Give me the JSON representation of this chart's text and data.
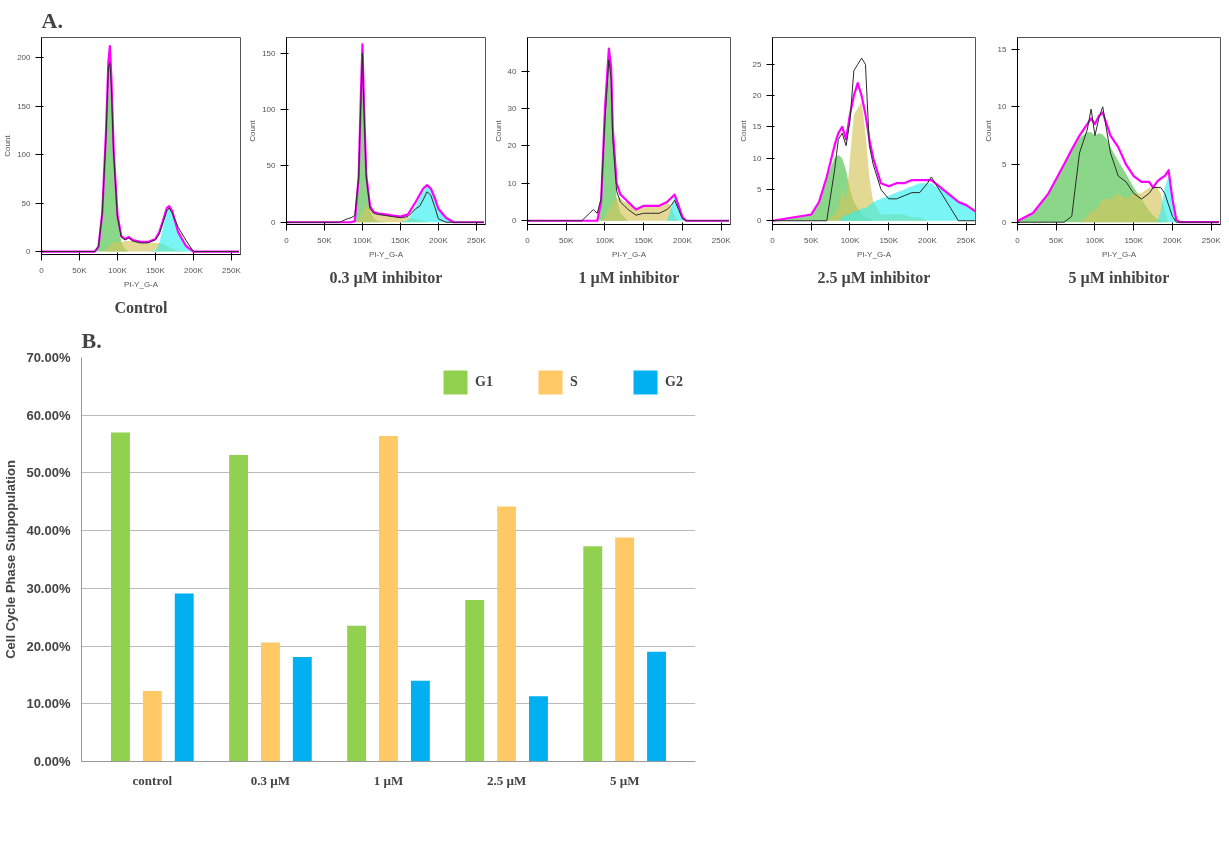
{
  "chart_data": [
    {
      "type": "area",
      "title": "Control",
      "annotations": [
        "A."
      ],
      "xlabel": "PI-Y_G-A",
      "ylabel": "Count",
      "xlim": [
        0,
        262000
      ],
      "ylim": [
        -3,
        221
      ],
      "xticks": [
        0,
        {
          "value": 50000,
          "label": "50K"
        },
        {
          "value": 100000,
          "label": "100K"
        },
        {
          "value": 150000,
          "label": "150K"
        },
        {
          "value": 200000,
          "label": "200K"
        },
        {
          "value": 250000,
          "label": "250K"
        }
      ],
      "yticks": [
        0,
        50,
        100,
        150,
        200
      ],
      "x": [
        0,
        70000,
        75000,
        80000,
        85000,
        88000,
        90000,
        92000,
        95000,
        100000,
        105000,
        110000,
        115000,
        120000,
        130000,
        140000,
        150000,
        155000,
        160000,
        165000,
        168000,
        172000,
        180000,
        190000,
        200000,
        260000
      ],
      "series": [
        {
          "type": "area",
          "color": "#4cc24c",
          "values": [
            0,
            0,
            5,
            40,
            120,
            190,
            205,
            175,
            100,
            32,
            10,
            3,
            0,
            0,
            0,
            0,
            0,
            0,
            0,
            0,
            0,
            0,
            0,
            0,
            0,
            0
          ]
        },
        {
          "type": "area",
          "color": "#d4c45a",
          "values": [
            0,
            0,
            0,
            0,
            2,
            5,
            6,
            8,
            10,
            10,
            10,
            11,
            11,
            11,
            10,
            9,
            9,
            9,
            8,
            6,
            5,
            3,
            1,
            0,
            0,
            0
          ]
        },
        {
          "type": "area",
          "color": "#33f0f0",
          "values": [
            0,
            0,
            0,
            0,
            0,
            0,
            0,
            0,
            0,
            0,
            0,
            0,
            0,
            0,
            0,
            0,
            1,
            8,
            25,
            42,
            45,
            40,
            20,
            5,
            0,
            0
          ]
        },
        {
          "type": "line",
          "color": "#2b2b2b",
          "values": [
            0,
            0,
            5,
            40,
            120,
            190,
            195,
            170,
            100,
            35,
            15,
            12,
            14,
            11,
            9,
            9,
            12,
            18,
            30,
            42,
            45,
            40,
            25,
            12,
            0,
            0
          ]
        },
        {
          "type": "line",
          "color": "#ff00ff",
          "values": [
            0,
            0,
            5,
            40,
            125,
            195,
            212,
            180,
            105,
            38,
            16,
            13,
            15,
            12,
            10,
            10,
            13,
            20,
            32,
            45,
            47,
            42,
            20,
            6,
            0,
            0
          ]
        }
      ]
    },
    {
      "type": "area",
      "title": "0.3 µM inhibitor",
      "xlabel": "PI-Y_G-A",
      "ylabel": "Count",
      "xlim": [
        0,
        262000
      ],
      "ylim": [
        -2,
        164
      ],
      "xticks": [
        0,
        {
          "value": 50000,
          "label": "50K"
        },
        {
          "value": 100000,
          "label": "100K"
        },
        {
          "value": 150000,
          "label": "150K"
        },
        {
          "value": 200000,
          "label": "200K"
        },
        {
          "value": 250000,
          "label": "250K"
        }
      ],
      "yticks": [
        0,
        50,
        100,
        150
      ],
      "x": [
        0,
        70000,
        80000,
        85000,
        90000,
        95000,
        98000,
        100000,
        102000,
        105000,
        110000,
        115000,
        120000,
        130000,
        140000,
        150000,
        160000,
        170000,
        175000,
        180000,
        185000,
        190000,
        195000,
        200000,
        210000,
        220000,
        260000
      ],
      "series": [
        {
          "type": "area",
          "color": "#4cc24c",
          "values": [
            0,
            0,
            0,
            0,
            1,
            40,
            112,
            152,
            100,
            38,
            10,
            3,
            1,
            0,
            0,
            0,
            0,
            0,
            0,
            0,
            0,
            0,
            0,
            0,
            0,
            0,
            0
          ]
        },
        {
          "type": "area",
          "color": "#d4c45a",
          "values": [
            0,
            0,
            0,
            0,
            0,
            2,
            5,
            8,
            12,
            15,
            12,
            10,
            8,
            7,
            6,
            5,
            4,
            3,
            2,
            1,
            0,
            0,
            0,
            0,
            0,
            0,
            0
          ]
        },
        {
          "type": "area",
          "color": "#33f0f0",
          "values": [
            0,
            0,
            0,
            0,
            0,
            0,
            0,
            0,
            0,
            0,
            0,
            0,
            0,
            0,
            0,
            0,
            2,
            14,
            22,
            28,
            32,
            30,
            22,
            12,
            4,
            0,
            0
          ]
        },
        {
          "type": "line",
          "color": "#2b2b2b",
          "values": [
            0,
            0,
            3,
            4,
            6,
            40,
            110,
            150,
            100,
            40,
            12,
            8,
            7,
            6,
            5,
            4,
            5,
            12,
            14,
            20,
            27,
            24,
            14,
            3,
            0,
            0,
            0
          ]
        },
        {
          "type": "line",
          "color": "#ff00ff",
          "values": [
            0,
            0,
            0,
            0,
            1,
            40,
            115,
            158,
            105,
            42,
            14,
            9,
            8,
            7,
            6,
            5,
            7,
            18,
            24,
            30,
            33,
            30,
            22,
            12,
            4,
            0,
            0
          ]
        }
      ]
    },
    {
      "type": "area",
      "title": "1 µM inhibitor",
      "xlabel": "PI-Y_G-A",
      "ylabel": "Count",
      "xlim": [
        0,
        262000
      ],
      "ylim": [
        -1,
        49
      ],
      "xticks": [
        0,
        {
          "value": 50000,
          "label": "50K"
        },
        {
          "value": 100000,
          "label": "100K"
        },
        {
          "value": 150000,
          "label": "150K"
        },
        {
          "value": 200000,
          "label": "200K"
        },
        {
          "value": 250000,
          "label": "250K"
        }
      ],
      "yticks": [
        0,
        10,
        20,
        30,
        40
      ],
      "x": [
        0,
        70000,
        80000,
        85000,
        90000,
        95000,
        100000,
        105000,
        108000,
        110000,
        115000,
        120000,
        125000,
        130000,
        140000,
        150000,
        160000,
        170000,
        180000,
        185000,
        190000,
        195000,
        200000,
        205000,
        260000
      ],
      "series": [
        {
          "type": "area",
          "color": "#4cc24c",
          "values": [
            0,
            0,
            0,
            0,
            0,
            5,
            29,
            44,
            40,
            23,
            6,
            2,
            1,
            0,
            0,
            0,
            0,
            0,
            0,
            0,
            0,
            0,
            0,
            0,
            0
          ]
        },
        {
          "type": "area",
          "color": "#d4c45a",
          "values": [
            0,
            0,
            0,
            0,
            0,
            0,
            1,
            3,
            4,
            5,
            6,
            6,
            5,
            5,
            3,
            4,
            4,
            4,
            5,
            4,
            1,
            0,
            0,
            0,
            0
          ]
        },
        {
          "type": "area",
          "color": "#33f0f0",
          "values": [
            0,
            0,
            0,
            0,
            0,
            0,
            0,
            0,
            0,
            0,
            0,
            0,
            0,
            0,
            0,
            0,
            0,
            0,
            0,
            3,
            7,
            5,
            1,
            0,
            0
          ]
        },
        {
          "type": "line",
          "color": "#2b2b2b",
          "values": [
            0,
            0,
            2,
            3,
            2,
            6,
            27,
            43,
            38,
            22,
            8,
            5,
            4,
            3,
            1.5,
            2,
            2,
            2,
            3,
            4,
            5.5,
            3,
            0.5,
            0,
            0
          ]
        },
        {
          "type": "line",
          "color": "#ff00ff",
          "values": [
            0,
            0,
            0,
            0,
            0,
            5,
            30,
            46,
            41,
            25,
            10,
            7,
            6,
            5,
            3,
            4,
            4,
            4,
            5,
            6,
            7,
            4,
            1,
            0,
            0
          ]
        }
      ]
    },
    {
      "type": "area",
      "title": "2.5 µM inhibitor",
      "xlabel": "PI-Y_G-A",
      "ylabel": "Count",
      "xlim": [
        0,
        262000
      ],
      "ylim": [
        -0.6,
        29.3
      ],
      "xticks": [
        0,
        {
          "value": 50000,
          "label": "50K"
        },
        {
          "value": 100000,
          "label": "100K"
        },
        {
          "value": 150000,
          "label": "150K"
        },
        {
          "value": 200000,
          "label": "200K"
        },
        {
          "value": 250000,
          "label": "250K"
        }
      ],
      "yticks": [
        0,
        5,
        10,
        15,
        20,
        25
      ],
      "x": [
        0,
        50000,
        60000,
        70000,
        80000,
        85000,
        90000,
        95000,
        100000,
        105000,
        110000,
        115000,
        120000,
        125000,
        130000,
        140000,
        150000,
        160000,
        170000,
        180000,
        190000,
        200000,
        205000,
        210000,
        220000,
        230000,
        240000,
        250000,
        262000
      ],
      "series": [
        {
          "type": "area",
          "color": "#4cc24c",
          "values": [
            0,
            1,
            3,
            7,
            10,
            10.5,
            10,
            8,
            5,
            3,
            2,
            1,
            0.5,
            0.3,
            0,
            0,
            0,
            0,
            0,
            0,
            0,
            0,
            0,
            0,
            0,
            0,
            0,
            0,
            0
          ]
        },
        {
          "type": "area",
          "color": "#d4c45a",
          "values": [
            0,
            0,
            0,
            0,
            1,
            2,
            5,
            3,
            10,
            17,
            18,
            19,
            14,
            7,
            3,
            1,
            1,
            1,
            1,
            0.5,
            0.5,
            0,
            0,
            0,
            0,
            0,
            0,
            0,
            0
          ]
        },
        {
          "type": "area",
          "color": "#33f0f0",
          "values": [
            0,
            0,
            0,
            0,
            0,
            0,
            0.5,
            1,
            1,
            1.5,
            1.5,
            2,
            2,
            2.5,
            3,
            3.5,
            4,
            4.5,
            5,
            5.5,
            6,
            6,
            6,
            5.5,
            5,
            4,
            3,
            2.5,
            1.5
          ]
        },
        {
          "type": "line",
          "color": "#2b2b2b",
          "values": [
            0,
            0,
            0,
            0,
            8,
            13,
            14,
            12,
            16,
            24,
            25,
            26,
            25,
            12,
            9,
            5,
            3.5,
            3.5,
            4,
            4.5,
            4.5,
            6,
            7,
            6,
            4,
            2,
            0,
            0,
            0
          ]
        },
        {
          "type": "line",
          "color": "#ff00ff",
          "values": [
            0,
            1,
            3,
            7,
            12,
            14,
            15,
            13,
            17,
            20,
            22,
            20,
            17,
            13,
            10,
            6,
            5.5,
            6,
            6,
            6.5,
            6.5,
            6.5,
            6.5,
            6,
            5,
            4,
            3,
            2.5,
            1.5
          ]
        }
      ]
    },
    {
      "type": "area",
      "title": "5 µM inhibitor",
      "xlabel": "PI-Y_G-A",
      "ylabel": "Count",
      "xlim": [
        0,
        262000
      ],
      "ylim": [
        -0.2,
        16
      ],
      "xticks": [
        0,
        {
          "value": 50000,
          "label": "50K"
        },
        {
          "value": 100000,
          "label": "100K"
        },
        {
          "value": 150000,
          "label": "150K"
        },
        {
          "value": 200000,
          "label": "200K"
        },
        {
          "value": 250000,
          "label": "250K"
        }
      ],
      "yticks": [
        0,
        5,
        10,
        15
      ],
      "x": [
        0,
        20000,
        40000,
        60000,
        70000,
        80000,
        90000,
        95000,
        100000,
        105000,
        110000,
        115000,
        120000,
        130000,
        140000,
        150000,
        160000,
        170000,
        175000,
        180000,
        185000,
        190000,
        195000,
        200000,
        205000,
        210000,
        260000
      ],
      "series": [
        {
          "type": "area",
          "color": "#4cc24c",
          "values": [
            0.1,
            0.8,
            2.5,
            5,
            6.3,
            7.3,
            7.8,
            7.8,
            7.5,
            7.7,
            7.6,
            7.2,
            6.5,
            5.3,
            4.2,
            3,
            2,
            1,
            0.6,
            0.3,
            0.1,
            0,
            0,
            0,
            0,
            0,
            0
          ]
        },
        {
          "type": "area",
          "color": "#d4c45a",
          "values": [
            0,
            0,
            0,
            0,
            0,
            0,
            0.5,
            1,
            1,
            1.5,
            2,
            2,
            2,
            2.5,
            2,
            2.5,
            2.5,
            3,
            3,
            3,
            2.5,
            1,
            0,
            0,
            0,
            0,
            0
          ]
        },
        {
          "type": "area",
          "color": "#33f0f0",
          "values": [
            0,
            0,
            0,
            0,
            0,
            0,
            0,
            0,
            0,
            0,
            0,
            0,
            0,
            0,
            0,
            0,
            0,
            0,
            0,
            0,
            1,
            3,
            4,
            2,
            0.2,
            0,
            0
          ]
        },
        {
          "type": "line",
          "color": "#2b2b2b",
          "values": [
            0,
            0,
            0,
            0,
            0.5,
            6,
            8,
            9.8,
            7.5,
            9,
            10,
            8,
            6,
            4,
            3.5,
            2.5,
            2,
            2.5,
            3,
            3,
            3,
            2.5,
            1.5,
            0.5,
            0,
            0,
            0
          ]
        },
        {
          "type": "line",
          "color": "#ff00ff",
          "values": [
            0.1,
            0.8,
            2.5,
            5,
            6.3,
            7.5,
            8.5,
            9,
            8.5,
            9.2,
            9.5,
            8.5,
            7.5,
            6.5,
            5,
            4,
            3.5,
            3.5,
            3,
            3.5,
            3.8,
            4,
            4.5,
            2,
            0.2,
            0,
            0
          ]
        }
      ]
    },
    {
      "type": "bar",
      "annotations": [
        "B."
      ],
      "ylabel": "Cell Cycle Phase Subpopulation",
      "categories": [
        "control",
        "0.3 µM",
        "1 µM",
        "2.5 µM",
        "5 µM"
      ],
      "ylim": [
        0,
        70
      ],
      "yticks": [
        {
          "value": 0,
          "label": "0.00%"
        },
        {
          "value": 10,
          "label": "10.00%"
        },
        {
          "value": 20,
          "label": "20.00%"
        },
        {
          "value": 30,
          "label": "30.00%"
        },
        {
          "value": 40,
          "label": "40.00%"
        },
        {
          "value": 50,
          "label": "50.00%"
        },
        {
          "value": 60,
          "label": "60.00%"
        },
        {
          "value": 70,
          "label": "70.00%"
        }
      ],
      "grid": "y",
      "legend": "top right",
      "series": [
        {
          "name": "G1",
          "color": "#92d050",
          "values": [
            57.0,
            53.1,
            23.5,
            28.0,
            37.3
          ]
        },
        {
          "name": "S",
          "color": "#ffc965",
          "values": [
            12.2,
            20.6,
            56.4,
            44.2,
            38.8
          ]
        },
        {
          "name": "G2",
          "color": "#00b0f0",
          "values": [
            29.1,
            18.1,
            14.0,
            11.3,
            19.0
          ]
        }
      ]
    }
  ]
}
